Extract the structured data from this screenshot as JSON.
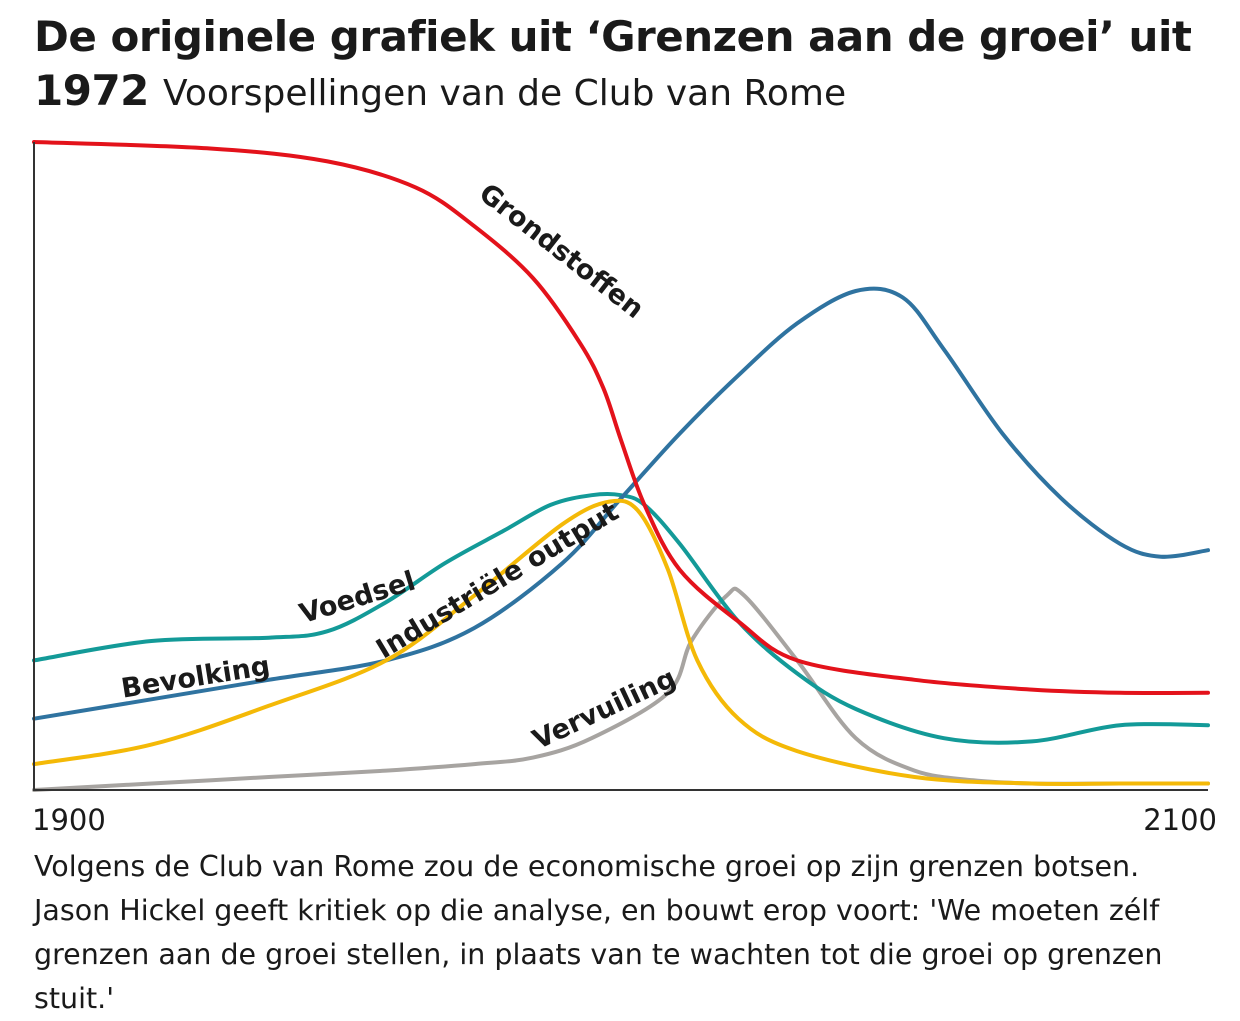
{
  "header": {
    "title": "De originele grafiek uit ‘Grenzen aan de groei’ uit 1972",
    "subtitle": "Voorspellingen van de Club van Rome"
  },
  "chart_data": {
    "type": "line",
    "xlim": [
      1900,
      2100
    ],
    "x_ticks": [
      "1900",
      "2100"
    ],
    "grid": false,
    "legend": "labels on lines",
    "series": [
      {
        "name": "Grondstoffen",
        "color": "#e3121b",
        "x": [
          1900,
          1930,
          1950,
          1965,
          1975,
          1985,
          1993,
          1997,
          2000,
          2004,
          2010,
          2020,
          2030,
          2050,
          2070,
          2085,
          2100
        ],
        "y": [
          100,
          99,
          97,
          93,
          87,
          79,
          69,
          62,
          54,
          44,
          34,
          26,
          20,
          17,
          15.5,
          15,
          15
        ]
      },
      {
        "name": "Voedsel",
        "color": "#139a98",
        "x": [
          1900,
          1920,
          1940,
          1950,
          1960,
          1970,
          1980,
          1988,
          1995,
          2000,
          2004,
          2010,
          2020,
          2030,
          2040,
          2055,
          2070,
          2085,
          2100
        ],
        "y": [
          20,
          23,
          23.5,
          24.5,
          29,
          35,
          40,
          44,
          45.5,
          45.5,
          44,
          38,
          26,
          18,
          12.5,
          8,
          7.5,
          10,
          10
        ]
      },
      {
        "name": "Bevolking",
        "color": "#2f73a0",
        "x": [
          1900,
          1920,
          1940,
          1960,
          1975,
          1990,
          2000,
          2010,
          2020,
          2030,
          2040,
          2048,
          2055,
          2065,
          2075,
          2085,
          2092,
          2100
        ],
        "y": [
          11,
          14,
          17,
          20,
          25,
          35,
          45,
          55,
          64,
          72,
          77,
          76,
          68,
          55,
          45,
          38,
          36,
          37
        ]
      },
      {
        "name": "Industriële output",
        "color": "#f4b907",
        "x": [
          1900,
          1920,
          1940,
          1960,
          1975,
          1990,
          1998,
          2003,
          2008,
          2013,
          2020,
          2030,
          2050,
          2070,
          2085,
          2100
        ],
        "y": [
          4,
          7,
          13,
          20,
          30,
          41,
          44.5,
          43,
          34,
          20,
          11,
          6,
          2,
          1,
          1,
          1
        ]
      },
      {
        "name": "Vervuiling",
        "color": "#a7a4a1",
        "x": [
          1900,
          1920,
          1940,
          1960,
          1975,
          1985,
          1995,
          2008,
          2012,
          2018,
          2021,
          2030,
          2040,
          2050,
          2060,
          2070,
          2085,
          2100
        ],
        "y": [
          0,
          1,
          2,
          3,
          4,
          5,
          8,
          15,
          23,
          30,
          30,
          20,
          8,
          3,
          1.5,
          1,
          1,
          1
        ]
      }
    ]
  },
  "caption": "Volgens de Club van Rome zou de economische groei op zijn grenzen botsen. Jason Hickel geeft kritiek op die analyse, en bouwt erop voort: 'We moeten zélf grenzen aan de groei stellen, in plaats van te wachten tot die groei op grenzen stuit.'",
  "colors": {
    "axis": "#333333",
    "text": "#1a1a1a"
  }
}
